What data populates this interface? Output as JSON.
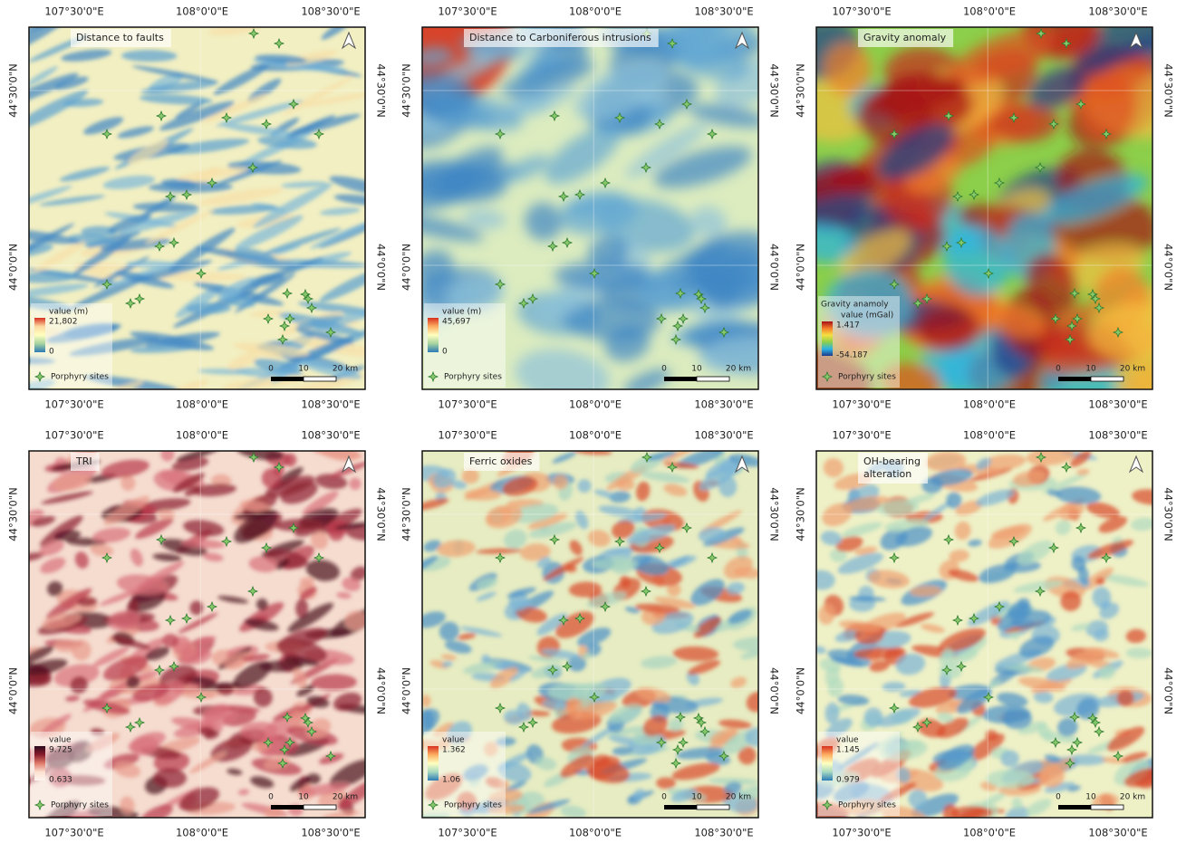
{
  "panels": [
    {
      "title_lines": [
        "Distance to faults"
      ],
      "top_labels": [
        "107°30'0\"E",
        "108°0'0\"E",
        "108°30'0\"E"
      ],
      "bottom_labels": [
        "107°30'0\"E",
        "108°0'0\"E",
        "108°30'0\"E"
      ],
      "left_labels": [
        "44°30'0\"N",
        "44°0'0\"N"
      ],
      "right_labels": [
        "44°30'0\"N",
        "44°0'0\"N"
      ],
      "legend": {
        "title": "value (m)",
        "max": "21,802",
        "min": "0",
        "sites": "Porphyry sites"
      },
      "scale": [
        "0",
        "10",
        "20 km"
      ]
    },
    {
      "title_lines": [
        "Distance to Carboniferous intrusions"
      ],
      "top_labels": [
        "107°30'0\"E",
        "108°0'0\"E",
        "108°30'0\"E"
      ],
      "bottom_labels": [
        "107°30'0\"E",
        "108°0'0\"E",
        "108°30'0\"E"
      ],
      "left_labels": [
        "44°30'0\"N",
        "44°0'0\"N"
      ],
      "right_labels": [
        "44°30'0\"N",
        "44°0'0\"N"
      ],
      "legend": {
        "title": "value (m)",
        "max": "45,697",
        "min": "0",
        "sites": "Porphyry sites"
      },
      "scale": [
        "0",
        "10",
        "20 km"
      ]
    },
    {
      "title_lines": [
        "Gravity anomaly"
      ],
      "top_labels": [
        "107°30'0\"E",
        "108°0'0\"E",
        "108°30'0\"E"
      ],
      "bottom_labels": [
        "107°30'0\"E",
        "108°0'0\"E",
        "108°30'0\"E"
      ],
      "left_labels": [
        "44°30'0\"N",
        "44°0'0\"N"
      ],
      "right_labels": [
        "44°30'0\"N",
        "44°0'0\"N"
      ],
      "legend": {
        "heading": "Gravity anamoly",
        "title": "value (mGal)",
        "max": "1.417",
        "min": "-54.187",
        "sites": "Porphyry sites"
      },
      "scale": [
        "0",
        "10",
        "20 km"
      ]
    },
    {
      "title_lines": [
        "TRI"
      ],
      "top_labels": [
        "107°30'0\"E",
        "108°0'0\"E",
        "108°30'0\"E"
      ],
      "bottom_labels": [
        "107°30'0\"E",
        "108°0'0\"E",
        "108°30'0\"E"
      ],
      "left_labels": [
        "44°30'0\"N",
        "44°0'0\"N"
      ],
      "right_labels": [
        "44°30'0\"N",
        "44°0'0\"N"
      ],
      "legend": {
        "title": "value",
        "max": "9.725",
        "min": "0.633",
        "sites": "Porphyry sites"
      },
      "scale": [
        "0",
        "10",
        "20 km"
      ]
    },
    {
      "title_lines": [
        "Ferric oxides"
      ],
      "top_labels": [
        "107°30'0\"E",
        "108°0'0\"E",
        "108°30'0\"E"
      ],
      "bottom_labels": [
        "107°30'0\"E",
        "108°0'0\"E",
        "108°30'0\"E"
      ],
      "left_labels": [
        "44°30'0\"N",
        "44°0'0\"N"
      ],
      "right_labels": [
        "44°30'0\"N",
        "44°0'0\"N"
      ],
      "legend": {
        "title": "value",
        "max": "1.362",
        "min": "1.06",
        "sites": "Porphyry sites"
      },
      "scale": [
        "0",
        "10",
        "20 km"
      ]
    },
    {
      "title_lines": [
        "OH-bearing",
        "alteration"
      ],
      "top_labels": [
        "107°30'0\"E",
        "108°0'0\"E",
        "108°30'0\"E"
      ],
      "bottom_labels": [
        "107°30'0\"E",
        "108°0'0\"E",
        "108°30'0\"E"
      ],
      "left_labels": [
        "44°30'0\"N",
        "44°0'0\"N"
      ],
      "right_labels": [
        "44°30'0\"N",
        "44°0'0\"N"
      ],
      "legend": {
        "title": "value",
        "max": "1.145",
        "min": "0.979",
        "sites": "Porphyry sites"
      },
      "scale": [
        "0",
        "10",
        "20 km"
      ]
    }
  ]
}
